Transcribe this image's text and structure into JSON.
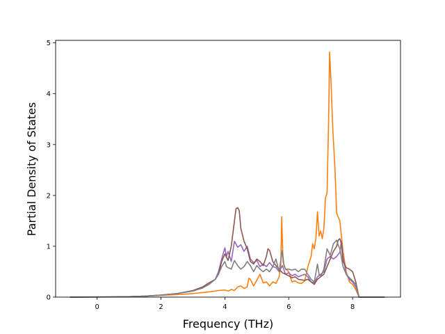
{
  "chart_data": {
    "type": "line",
    "xlabel": "Frequency (THz)",
    "ylabel": "Partial Density of States",
    "xlim": [
      -1.3,
      9.5
    ],
    "ylim": [
      0,
      5.05
    ],
    "xticks": [
      0,
      2,
      4,
      6,
      8
    ],
    "yticks": [
      0,
      1,
      2,
      3,
      4,
      5
    ],
    "xtick_labels": [
      "0",
      "2",
      "4",
      "6",
      "8"
    ],
    "ytick_labels": [
      "0",
      "1",
      "2",
      "3",
      "4",
      "5"
    ],
    "grid": false,
    "legend": "none",
    "series": [
      {
        "color": "#ff7f0e",
        "points": [
          [
            -0.85,
            0
          ],
          [
            0,
            0
          ],
          [
            0.5,
            0.005
          ],
          [
            1,
            0.01
          ],
          [
            1.5,
            0.02
          ],
          [
            2,
            0.035
          ],
          [
            2.5,
            0.05
          ],
          [
            3,
            0.07
          ],
          [
            3.3,
            0.09
          ],
          [
            3.6,
            0.11
          ],
          [
            3.8,
            0.13
          ],
          [
            4,
            0.14
          ],
          [
            4.1,
            0.12
          ],
          [
            4.2,
            0.15
          ],
          [
            4.3,
            0.13
          ],
          [
            4.4,
            0.2
          ],
          [
            4.5,
            0.22
          ],
          [
            4.6,
            0.17
          ],
          [
            4.7,
            0.2
          ],
          [
            4.75,
            0.37
          ],
          [
            4.8,
            0.35
          ],
          [
            4.9,
            0.22
          ],
          [
            5,
            0.33
          ],
          [
            5.1,
            0.45
          ],
          [
            5.2,
            0.28
          ],
          [
            5.3,
            0.3
          ],
          [
            5.4,
            0.22
          ],
          [
            5.5,
            0.3
          ],
          [
            5.6,
            0.27
          ],
          [
            5.7,
            0.4
          ],
          [
            5.75,
            0.6
          ],
          [
            5.78,
            1.58
          ],
          [
            5.82,
            0.7
          ],
          [
            5.9,
            0.55
          ],
          [
            6,
            0.5
          ],
          [
            6.1,
            0.3
          ],
          [
            6.2,
            0.32
          ],
          [
            6.3,
            0.28
          ],
          [
            6.4,
            0.27
          ],
          [
            6.5,
            0.32
          ],
          [
            6.55,
            0.45
          ],
          [
            6.6,
            0.6
          ],
          [
            6.7,
            0.8
          ],
          [
            6.75,
            1.05
          ],
          [
            6.8,
            0.95
          ],
          [
            6.85,
            1.15
          ],
          [
            6.9,
            1.68
          ],
          [
            6.95,
            1.2
          ],
          [
            7,
            1.3
          ],
          [
            7.05,
            1.15
          ],
          [
            7.1,
            1.35
          ],
          [
            7.15,
            1.95
          ],
          [
            7.2,
            2.05
          ],
          [
            7.25,
            3.5
          ],
          [
            7.28,
            4.82
          ],
          [
            7.32,
            4.3
          ],
          [
            7.38,
            3.3
          ],
          [
            7.45,
            2.5
          ],
          [
            7.5,
            1.65
          ],
          [
            7.6,
            1.5
          ],
          [
            7.7,
            0.9
          ],
          [
            7.8,
            0.5
          ],
          [
            7.9,
            0.3
          ],
          [
            8,
            0.25
          ],
          [
            8.1,
            0.15
          ],
          [
            8.2,
            0
          ],
          [
            9,
            0
          ]
        ]
      },
      {
        "color": "#9467bd",
        "points": [
          [
            -0.85,
            0
          ],
          [
            0.5,
            0.005
          ],
          [
            1,
            0.01
          ],
          [
            1.5,
            0.02
          ],
          [
            2,
            0.04
          ],
          [
            2.5,
            0.07
          ],
          [
            3,
            0.12
          ],
          [
            3.3,
            0.18
          ],
          [
            3.5,
            0.25
          ],
          [
            3.7,
            0.35
          ],
          [
            3.8,
            0.5
          ],
          [
            3.9,
            0.75
          ],
          [
            4,
            0.97
          ],
          [
            4.05,
            0.8
          ],
          [
            4.1,
            0.9
          ],
          [
            4.2,
            0.7
          ],
          [
            4.3,
            1.1
          ],
          [
            4.4,
            0.98
          ],
          [
            4.5,
            1.03
          ],
          [
            4.6,
            0.9
          ],
          [
            4.7,
            1
          ],
          [
            4.8,
            0.75
          ],
          [
            4.9,
            0.68
          ],
          [
            5,
            0.72
          ],
          [
            5.1,
            0.6
          ],
          [
            5.2,
            0.65
          ],
          [
            5.3,
            0.6
          ],
          [
            5.4,
            0.68
          ],
          [
            5.5,
            0.6
          ],
          [
            5.6,
            0.58
          ],
          [
            5.7,
            0.5
          ],
          [
            5.8,
            0.62
          ],
          [
            5.9,
            0.45
          ],
          [
            6,
            0.48
          ],
          [
            6.1,
            0.42
          ],
          [
            6.2,
            0.45
          ],
          [
            6.3,
            0.4
          ],
          [
            6.5,
            0.45
          ],
          [
            6.6,
            0.4
          ],
          [
            6.7,
            0.3
          ],
          [
            6.8,
            0.28
          ],
          [
            6.9,
            0.4
          ],
          [
            7,
            0.45
          ],
          [
            7.1,
            0.5
          ],
          [
            7.2,
            0.75
          ],
          [
            7.3,
            0.8
          ],
          [
            7.4,
            0.75
          ],
          [
            7.5,
            0.8
          ],
          [
            7.6,
            0.88
          ],
          [
            7.65,
            1.1
          ],
          [
            7.7,
            0.8
          ],
          [
            7.8,
            0.45
          ],
          [
            7.9,
            0.35
          ],
          [
            8,
            0.3
          ],
          [
            8.1,
            0.2
          ],
          [
            8.2,
            0
          ],
          [
            9,
            0
          ]
        ]
      },
      {
        "color": "#8c564b",
        "points": [
          [
            -0.85,
            0
          ],
          [
            0.5,
            0.005
          ],
          [
            1,
            0.01
          ],
          [
            1.5,
            0.02
          ],
          [
            2,
            0.04
          ],
          [
            2.5,
            0.07
          ],
          [
            3,
            0.13
          ],
          [
            3.3,
            0.2
          ],
          [
            3.5,
            0.28
          ],
          [
            3.7,
            0.35
          ],
          [
            3.8,
            0.45
          ],
          [
            3.9,
            0.7
          ],
          [
            4,
            0.85
          ],
          [
            4.1,
            0.72
          ],
          [
            4.2,
            1
          ],
          [
            4.3,
            1.5
          ],
          [
            4.35,
            1.74
          ],
          [
            4.4,
            1.76
          ],
          [
            4.45,
            1.7
          ],
          [
            4.5,
            1.35
          ],
          [
            4.6,
            1.1
          ],
          [
            4.7,
            0.95
          ],
          [
            4.8,
            0.7
          ],
          [
            4.9,
            0.65
          ],
          [
            5,
            0.75
          ],
          [
            5.1,
            0.7
          ],
          [
            5.2,
            0.62
          ],
          [
            5.3,
            0.8
          ],
          [
            5.35,
            0.95
          ],
          [
            5.4,
            0.92
          ],
          [
            5.5,
            0.7
          ],
          [
            5.6,
            0.62
          ],
          [
            5.7,
            0.55
          ],
          [
            5.8,
            0.48
          ],
          [
            5.9,
            0.45
          ],
          [
            6,
            0.42
          ],
          [
            6.1,
            0.38
          ],
          [
            6.2,
            0.4
          ],
          [
            6.3,
            0.35
          ],
          [
            6.5,
            0.33
          ],
          [
            6.6,
            0.35
          ],
          [
            6.7,
            0.3
          ],
          [
            6.8,
            0.25
          ],
          [
            6.9,
            0.35
          ],
          [
            7,
            0.4
          ],
          [
            7.1,
            0.45
          ],
          [
            7.2,
            0.6
          ],
          [
            7.3,
            0.75
          ],
          [
            7.4,
            0.9
          ],
          [
            7.5,
            1
          ],
          [
            7.55,
            1.12
          ],
          [
            7.6,
            1.15
          ],
          [
            7.65,
            1.05
          ],
          [
            7.7,
            0.7
          ],
          [
            7.8,
            0.58
          ],
          [
            7.9,
            0.55
          ],
          [
            8,
            0.5
          ],
          [
            8.1,
            0.3
          ],
          [
            8.2,
            0
          ],
          [
            9,
            0
          ]
        ]
      },
      {
        "color": "#7f7f7f",
        "points": [
          [
            -0.85,
            0
          ],
          [
            0.5,
            0.005
          ],
          [
            1,
            0.01
          ],
          [
            1.5,
            0.02
          ],
          [
            2,
            0.04
          ],
          [
            2.5,
            0.07
          ],
          [
            3,
            0.12
          ],
          [
            3.3,
            0.18
          ],
          [
            3.5,
            0.25
          ],
          [
            3.7,
            0.35
          ],
          [
            3.8,
            0.45
          ],
          [
            3.9,
            0.6
          ],
          [
            4,
            0.7
          ],
          [
            4.05,
            0.6
          ],
          [
            4.1,
            0.58
          ],
          [
            4.2,
            0.55
          ],
          [
            4.3,
            0.72
          ],
          [
            4.4,
            0.62
          ],
          [
            4.5,
            0.55
          ],
          [
            4.6,
            0.6
          ],
          [
            4.7,
            0.7
          ],
          [
            4.8,
            0.62
          ],
          [
            4.9,
            0.5
          ],
          [
            5,
            0.62
          ],
          [
            5.1,
            0.55
          ],
          [
            5.2,
            0.5
          ],
          [
            5.3,
            0.55
          ],
          [
            5.4,
            0.5
          ],
          [
            5.5,
            0.6
          ],
          [
            5.6,
            0.75
          ],
          [
            5.7,
            0.5
          ],
          [
            5.8,
            0.92
          ],
          [
            5.85,
            0.62
          ],
          [
            5.9,
            0.55
          ],
          [
            6,
            0.55
          ],
          [
            6.1,
            0.53
          ],
          [
            6.2,
            0.55
          ],
          [
            6.3,
            0.5
          ],
          [
            6.4,
            0.55
          ],
          [
            6.5,
            0.55
          ],
          [
            6.6,
            0.45
          ],
          [
            6.7,
            0.35
          ],
          [
            6.8,
            0.3
          ],
          [
            6.9,
            0.65
          ],
          [
            6.95,
            0.45
          ],
          [
            7,
            0.4
          ],
          [
            7.1,
            0.55
          ],
          [
            7.2,
            0.95
          ],
          [
            7.3,
            0.82
          ],
          [
            7.4,
            1.05
          ],
          [
            7.5,
            1.12
          ],
          [
            7.55,
            1.02
          ],
          [
            7.6,
            0.95
          ],
          [
            7.7,
            0.6
          ],
          [
            7.8,
            0.45
          ],
          [
            7.9,
            0.38
          ],
          [
            8,
            0.32
          ],
          [
            8.1,
            0.25
          ],
          [
            8.2,
            0
          ],
          [
            9,
            0
          ]
        ]
      }
    ]
  }
}
